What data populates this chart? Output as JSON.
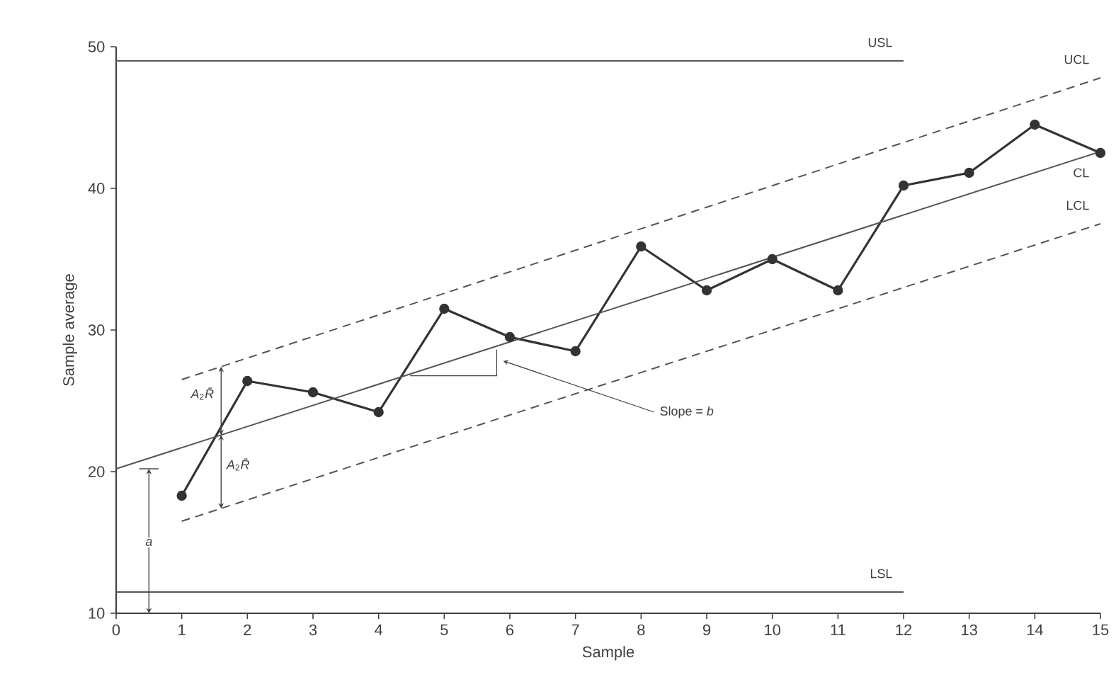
{
  "chart_data": {
    "type": "line",
    "xlabel": "Sample",
    "ylabel": "Sample average",
    "xlim": [
      0,
      15
    ],
    "ylim": [
      10,
      50
    ],
    "xticks": [
      0,
      1,
      2,
      3,
      4,
      5,
      6,
      7,
      8,
      9,
      10,
      11,
      12,
      13,
      14,
      15
    ],
    "yticks": [
      10,
      20,
      30,
      40,
      50
    ],
    "grid": false,
    "legend": false,
    "series": [
      {
        "color": "#333333",
        "marker": "circle",
        "line_style": "solid",
        "x": [
          1,
          2,
          3,
          4,
          5,
          6,
          7,
          8,
          9,
          10,
          11,
          12,
          13,
          14,
          15
        ],
        "values": [
          18.3,
          26.4,
          25.6,
          24.2,
          31.5,
          29.5,
          28.5,
          35.9,
          32.8,
          35.0,
          32.8,
          40.2,
          41.1,
          44.5,
          42.5
        ]
      },
      {
        "name": "USL",
        "color": "#555555",
        "marker": "none",
        "line_style": "solid",
        "x": [
          0,
          12
        ],
        "values": [
          49.0,
          49.0
        ]
      },
      {
        "name": "UCL",
        "color": "#555555",
        "marker": "none",
        "line_style": "dashed",
        "x": [
          1,
          15
        ],
        "values": [
          26.5,
          47.8
        ]
      },
      {
        "name": "CL",
        "color": "#555555",
        "marker": "none",
        "line_style": "solid",
        "x": [
          0,
          15
        ],
        "values": [
          20.2,
          42.6
        ]
      },
      {
        "name": "LCL",
        "color": "#555555",
        "marker": "none",
        "line_style": "dashed",
        "x": [
          1,
          15
        ],
        "values": [
          16.5,
          37.5
        ]
      },
      {
        "name": "LSL",
        "color": "#555555",
        "marker": "none",
        "line_style": "solid",
        "x": [
          0,
          12
        ],
        "values": [
          11.5,
          11.5
        ]
      }
    ],
    "annotations": [
      "*A*$_{2}$*R̄*",
      "*A*$_{2}$*R̄*",
      "*a*",
      "Slope = *b*"
    ]
  }
}
